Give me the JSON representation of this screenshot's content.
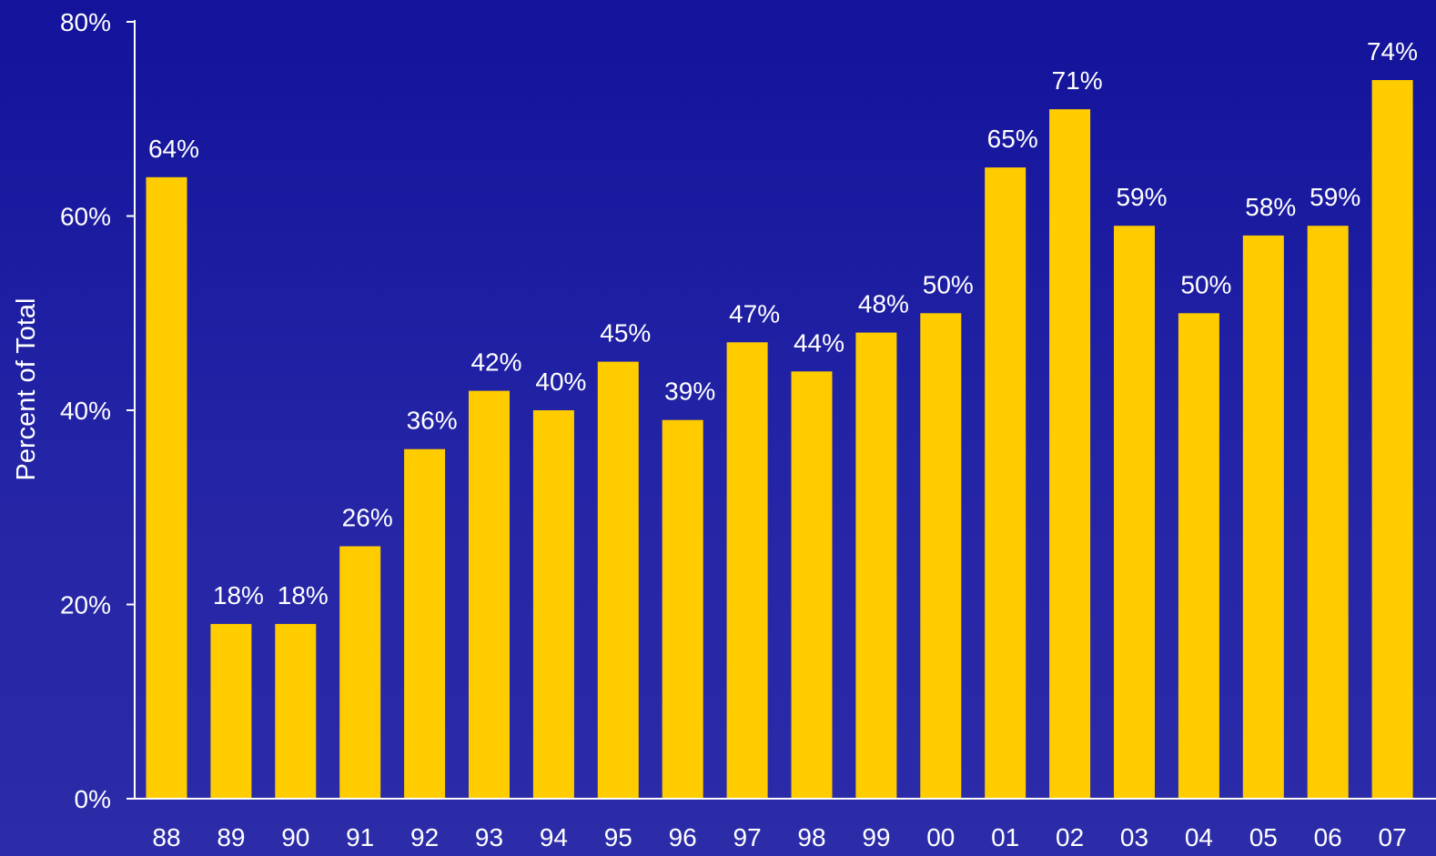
{
  "chart_data": {
    "type": "bar",
    "title": "",
    "xlabel": "",
    "ylabel": "Percent of Total",
    "ylim": [
      0,
      80
    ],
    "y_ticks": [
      {
        "value": 0,
        "label": "0%"
      },
      {
        "value": 20,
        "label": "20%"
      },
      {
        "value": 40,
        "label": "40%"
      },
      {
        "value": 60,
        "label": "60%"
      },
      {
        "value": 80,
        "label": "80%"
      }
    ],
    "categories": [
      "88",
      "89",
      "90",
      "91",
      "92",
      "93",
      "94",
      "95",
      "96",
      "97",
      "98",
      "99",
      "00",
      "01",
      "02",
      "03",
      "04",
      "05",
      "06",
      "07"
    ],
    "values": [
      64,
      18,
      18,
      26,
      36,
      42,
      40,
      45,
      39,
      47,
      44,
      48,
      50,
      65,
      71,
      59,
      50,
      58,
      59,
      74
    ],
    "data_labels": [
      "64%",
      "18%",
      "18%",
      "26%",
      "36%",
      "42%",
      "40%",
      "45%",
      "39%",
      "47%",
      "44%",
      "48%",
      "50%",
      "65%",
      "71%",
      "59%",
      "50%",
      "58%",
      "59%",
      "74%"
    ],
    "grid": false,
    "legend": "none",
    "colors": {
      "bar": "#ffcc00",
      "axis": "#ffffff",
      "text": "#ffffff",
      "background_top": "#13139b",
      "background_bottom": "#2c2ca8"
    }
  }
}
